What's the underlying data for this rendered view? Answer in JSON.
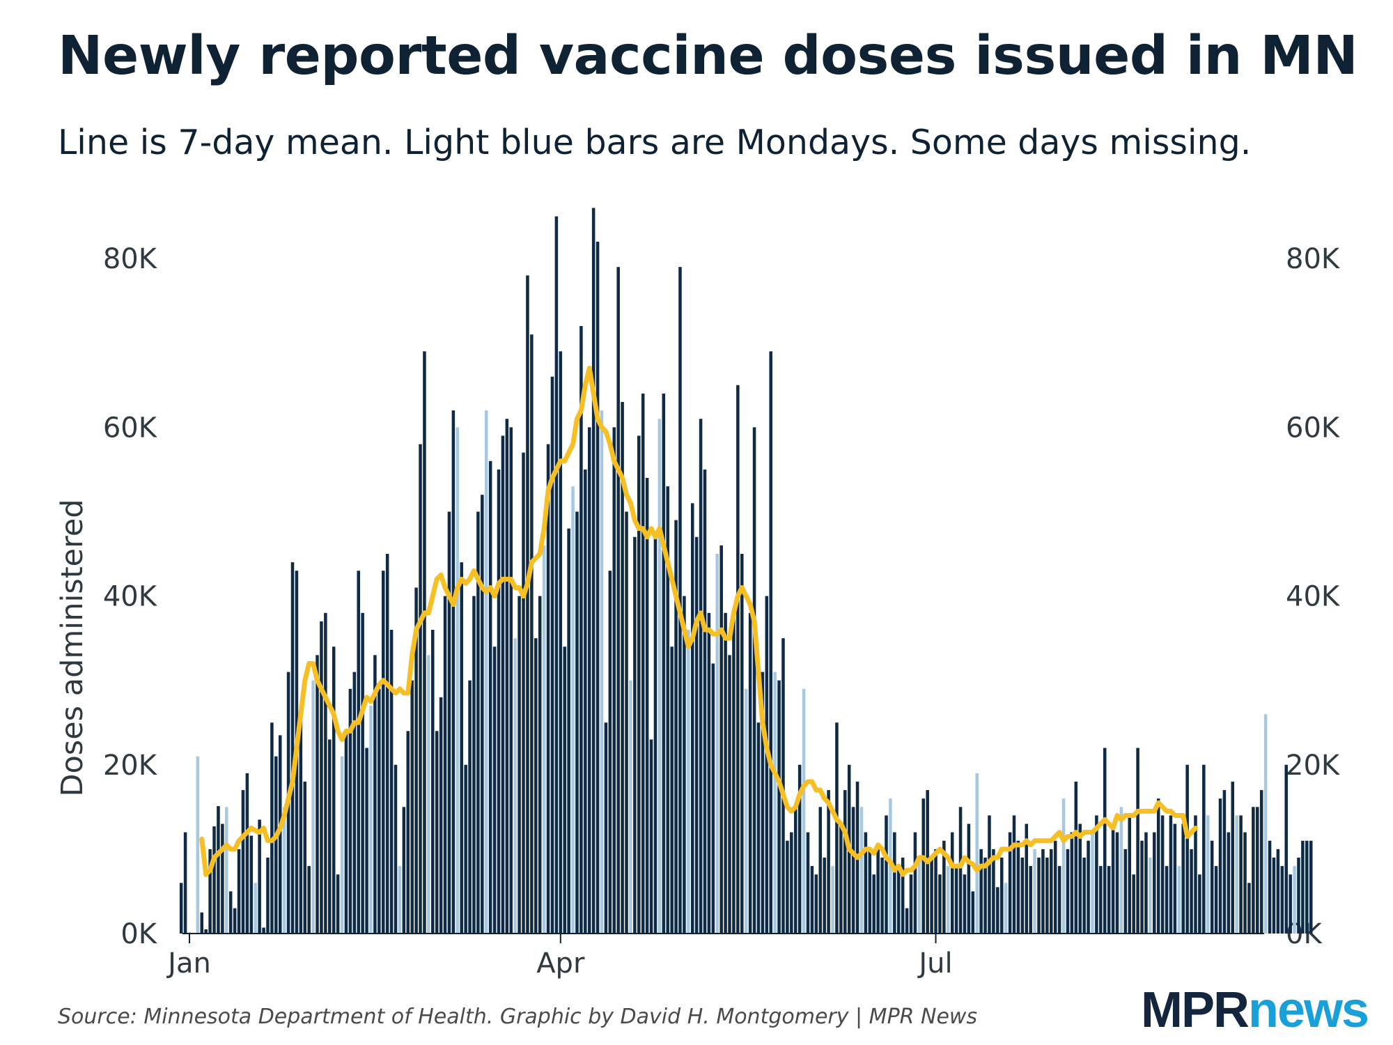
{
  "title": "Newly reported vaccine doses issued in MN",
  "subtitle": "Line is 7-day mean. Light blue bars are Mondays. Some days missing.",
  "source": "Source: Minnesota Department of Health. Graphic by David H. Montgomery | MPR News",
  "logo": {
    "part1": "MPR",
    "part2": "news"
  },
  "colors": {
    "bar": "#0f2a45",
    "monday_bar": "#a8c8e0",
    "line": "#f6bf25",
    "text": "#0f2233",
    "axis_text": "#2f3a40"
  },
  "chart_data": {
    "type": "bar",
    "xlabel": "",
    "ylabel": "Doses administered",
    "ylim": [
      0,
      90000
    ],
    "yticks": [
      0,
      20000,
      40000,
      60000,
      80000
    ],
    "ytick_labels": [
      "0K",
      "20K",
      "40K",
      "60K",
      "80K"
    ],
    "xticks": [
      {
        "label": "Jan",
        "day": 0
      },
      {
        "label": "Apr",
        "day": 90
      },
      {
        "label": "Jul",
        "day": 181
      }
    ],
    "first_bar_day": -2,
    "first_monday_day": 2,
    "missing_days": [
      1
    ],
    "series": [
      {
        "name": "Doses administered",
        "type": "bar",
        "values": [
          6000,
          12000,
          100,
          21000,
          2500,
          500,
          10000,
          12700,
          15100,
          13000,
          15000,
          5000,
          3000,
          10000,
          17000,
          19000,
          11600,
          6000,
          13500,
          700,
          9000,
          25000,
          21000,
          23500,
          15000,
          31000,
          44000,
          43000,
          26000,
          18000,
          8000,
          30000,
          33000,
          37000,
          38000,
          23000,
          34000,
          7000,
          21000,
          24000,
          29000,
          31000,
          43000,
          38000,
          22000,
          27000,
          33000,
          29000,
          43000,
          45000,
          36000,
          20000,
          8000,
          15000,
          24000,
          30000,
          41000,
          58000,
          69000,
          33000,
          36000,
          24000,
          28000,
          40000,
          50000,
          62000,
          60000,
          44000,
          20000,
          30000,
          40000,
          50000,
          52000,
          62000,
          56000,
          34000,
          55000,
          59000,
          61000,
          60000,
          35000,
          40000,
          57000,
          78000,
          71000,
          35000,
          40000,
          46000,
          58000,
          66000,
          85000,
          69000,
          34000,
          48000,
          53000,
          50000,
          72000,
          55000,
          60000,
          86000,
          82000,
          62000,
          25000,
          43000,
          60000,
          79000,
          63000,
          50000,
          30000,
          47000,
          59000,
          64000,
          54000,
          23000,
          47000,
          61000,
          64000,
          53000,
          34000,
          49000,
          79000,
          40000,
          36000,
          51000,
          47000,
          61000,
          55000,
          38000,
          32000,
          45000,
          46000,
          38000,
          33000,
          38000,
          65000,
          45000,
          29000,
          38000,
          60000,
          25000,
          31000,
          40000,
          69000,
          31000,
          30000,
          35000,
          11000,
          12000,
          15000,
          20000,
          29000,
          12000,
          8000,
          7000,
          15000,
          9000,
          17000,
          8000,
          25000,
          13000,
          17000,
          20000,
          15000,
          18000,
          15000,
          12000,
          10000,
          7000,
          10000,
          9000,
          14000,
          16000,
          12000,
          8000,
          9000,
          3000,
          7000,
          12000,
          9000,
          16000,
          17000,
          9000,
          10000,
          7000,
          11000,
          8000,
          12000,
          8000,
          15000,
          7000,
          13000,
          5000,
          19000,
          10000,
          9000,
          14000,
          10000,
          5500,
          9000,
          6000,
          12000,
          14000,
          11000,
          9000,
          13000,
          8000,
          10000,
          9000,
          10000,
          9000,
          10000,
          11000,
          8000,
          16000,
          10000,
          12000,
          18000,
          13000,
          9000,
          11000,
          12000,
          14000,
          8000,
          22000,
          8000,
          13000,
          12000,
          15000,
          10000,
          14000,
          7000,
          22000,
          11000,
          12000,
          9000,
          12000,
          16000,
          14000,
          8000,
          14000,
          13000,
          8000,
          13000,
          20000,
          10000,
          14000,
          7000,
          20000,
          14000,
          11000,
          8000,
          16000,
          17000,
          12000,
          18000,
          14000,
          14000,
          12000,
          6000,
          15000,
          15000,
          17000,
          26000,
          11000,
          9000,
          10000,
          8000,
          20000,
          7000,
          8000,
          9000,
          11000,
          11000,
          11000
        ]
      },
      {
        "name": "7-day mean",
        "type": "line",
        "start_day": 3,
        "values": [
          11200,
          7000,
          7500,
          9000,
          9500,
          10000,
          10500,
          10000,
          10000,
          11000,
          11500,
          12000,
          12500,
          12200,
          12000,
          12500,
          11000,
          11000,
          11500,
          12500,
          14000,
          16000,
          18000,
          22000,
          26000,
          30000,
          32000,
          32000,
          30000,
          29000,
          28000,
          27000,
          26000,
          24000,
          23000,
          24000,
          24000,
          25000,
          25000,
          26500,
          28000,
          27500,
          28500,
          29500,
          30000,
          29500,
          29000,
          28500,
          29000,
          28500,
          28500,
          33000,
          36000,
          37000,
          38000,
          38000,
          40000,
          42000,
          42500,
          41000,
          40000,
          39000,
          41000,
          42000,
          41500,
          42000,
          43000,
          42000,
          41000,
          40500,
          41000,
          40000,
          41500,
          42000,
          42000,
          42000,
          41000,
          41000,
          40000,
          41500,
          44000,
          44500,
          45000,
          48000,
          52500,
          54000,
          55000,
          56000,
          56000,
          57000,
          58000,
          61000,
          62000,
          65000,
          67000,
          64000,
          61000,
          60000,
          59500,
          58000,
          56000,
          55000,
          54000,
          52000,
          51000,
          49000,
          48000,
          48000,
          47000,
          48000,
          47000,
          48000,
          46000,
          44000,
          42000,
          40000,
          38000,
          36000,
          34000,
          35000,
          37000,
          38000,
          36000,
          36000,
          35500,
          35500,
          36000,
          35000,
          35000,
          38000,
          40000,
          41000,
          40000,
          39000,
          37000,
          31000,
          25000,
          22000,
          20000,
          19000,
          18000,
          16500,
          15000,
          14500,
          15000,
          16500,
          17500,
          18000,
          18000,
          17000,
          17000,
          16000,
          15500,
          14500,
          13500,
          13000,
          12000,
          10000,
          9500,
          9000,
          9500,
          10000,
          10000,
          9500,
          10500,
          10000,
          9000,
          8500,
          7500,
          8000,
          7000,
          7500,
          7500,
          8000,
          9000,
          9000,
          8500,
          9000,
          9500,
          10000,
          9500,
          9000,
          8000,
          8000,
          8000,
          9000,
          8500,
          8200,
          7500,
          8000,
          8000,
          8500,
          9000,
          9000,
          10000,
          10000,
          10000,
          10500,
          10500,
          10500,
          11000,
          10500,
          11000,
          11000,
          11000,
          11000,
          11000,
          11500,
          12000,
          11000,
          11500,
          11500,
          12000,
          11500,
          12000,
          12000,
          12000,
          12500,
          13000,
          13500,
          13000,
          12500,
          14000,
          13500,
          14000,
          14000,
          14000,
          14500,
          14500,
          14500,
          14500,
          14500,
          15500,
          15000,
          14500,
          14500,
          14000,
          14000,
          14000,
          11500,
          12000,
          12500
        ]
      }
    ]
  }
}
